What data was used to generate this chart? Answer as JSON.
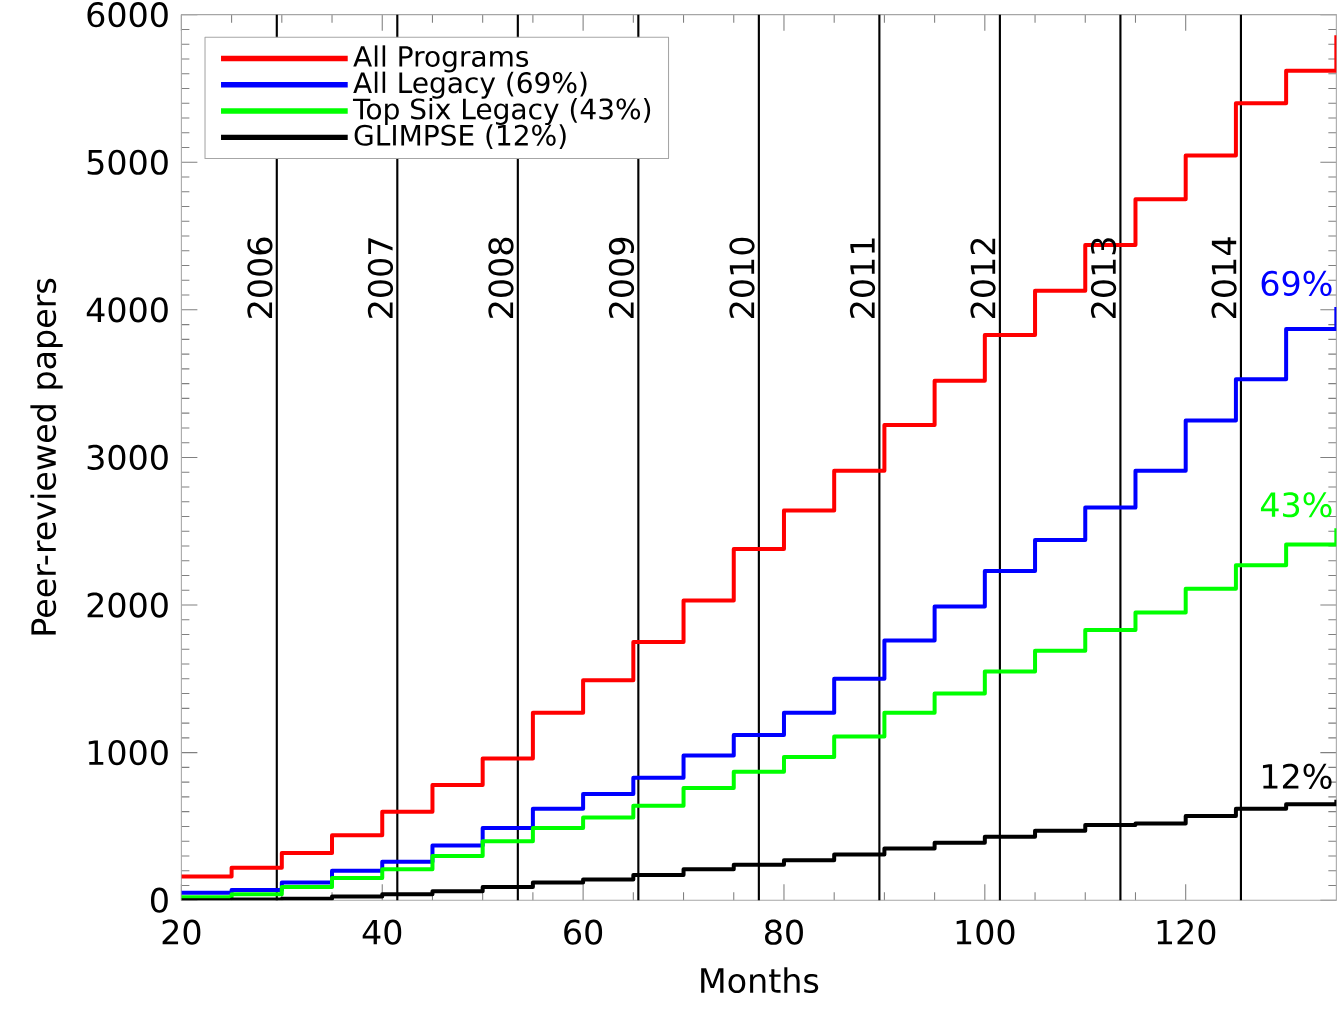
{
  "chart_data": {
    "type": "step",
    "xlabel": "Months",
    "ylabel": "Peer-reviewed papers",
    "x": [
      20,
      25,
      30,
      35,
      40,
      45,
      50,
      55,
      60,
      65,
      70,
      75,
      80,
      85,
      90,
      95,
      100,
      105,
      110,
      115,
      120,
      125,
      130,
      135
    ],
    "series": [
      {
        "name": "All Programs",
        "color": "#ff0000",
        "values": [
          160,
          220,
          320,
          440,
          600,
          780,
          960,
          1270,
          1490,
          1750,
          2030,
          2380,
          2640,
          2910,
          3220,
          3520,
          3830,
          4130,
          4440,
          4750,
          5045,
          5400,
          5620,
          5860
        ]
      },
      {
        "name": "All Legacy (69%)",
        "color": "#0000ff",
        "values": [
          50,
          70,
          120,
          200,
          260,
          370,
          490,
          620,
          720,
          830,
          980,
          1120,
          1270,
          1500,
          1760,
          1990,
          2230,
          2440,
          2660,
          2910,
          3250,
          3530,
          3870,
          4020
        ]
      },
      {
        "name": "Top Six Legacy (43%)",
        "color": "#00ff00",
        "values": [
          20,
          40,
          90,
          150,
          210,
          300,
          400,
          490,
          560,
          640,
          760,
          870,
          970,
          1110,
          1270,
          1400,
          1550,
          1690,
          1830,
          1950,
          2110,
          2270,
          2410,
          2520
        ]
      },
      {
        "name": "GLIMPSE (12%)",
        "color": "#000000",
        "values": [
          0,
          5,
          10,
          25,
          40,
          60,
          90,
          120,
          140,
          170,
          210,
          240,
          270,
          310,
          350,
          390,
          430,
          470,
          510,
          520,
          570,
          620,
          650,
          680
        ]
      }
    ],
    "xlim": [
      20,
      135
    ],
    "ylim": [
      0,
      6000
    ],
    "xticks": [
      20,
      40,
      60,
      80,
      100,
      120
    ],
    "yticks": [
      0,
      1000,
      2000,
      3000,
      4000,
      5000,
      6000
    ],
    "ref_lines": [
      {
        "axis": "x",
        "value": 29.5,
        "color": "#000000"
      },
      {
        "axis": "x",
        "value": 41.5,
        "color": "#000000"
      },
      {
        "axis": "x",
        "value": 53.5,
        "color": "#000000"
      },
      {
        "axis": "x",
        "value": 65.5,
        "color": "#000000"
      },
      {
        "axis": "x",
        "value": 77.5,
        "color": "#000000"
      },
      {
        "axis": "x",
        "value": 89.5,
        "color": "#000000"
      },
      {
        "axis": "x",
        "value": 101.5,
        "color": "#000000"
      },
      {
        "axis": "x",
        "value": 113.5,
        "color": "#000000"
      },
      {
        "axis": "x",
        "value": 125.5,
        "color": "#000000"
      }
    ],
    "annotations": [
      {
        "text": "2006",
        "x": 29.5
      },
      {
        "text": "2007",
        "x": 41.5
      },
      {
        "text": "2008",
        "x": 53.5
      },
      {
        "text": "2009",
        "x": 65.5
      },
      {
        "text": "2010",
        "x": 77.5
      },
      {
        "text": "2011",
        "x": 89.5
      },
      {
        "text": "2012",
        "x": 101.5
      },
      {
        "text": "2013",
        "x": 113.5
      },
      {
        "text": "2014",
        "x": 125.5
      },
      {
        "text": "69%",
        "x": 135,
        "y": 4020
      },
      {
        "text": "43%",
        "x": 135,
        "y": 2520
      },
      {
        "text": "12%",
        "x": 135,
        "y": 680
      }
    ],
    "legend": "top left",
    "grid": false,
    "marker": "none",
    "line_style": "solid"
  }
}
